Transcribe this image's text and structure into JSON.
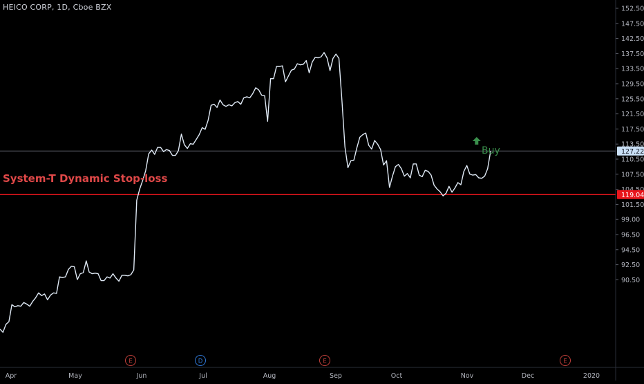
{
  "chart": {
    "title": "HEICO CORP, 1D, Cboe BZX",
    "stoploss_label": "System-T Dynamic Stop-loss",
    "buy_label": "Buy",
    "colors": {
      "background": "#000000",
      "price_line": "#dfe9f5",
      "stoploss_line": "#e8161c",
      "stoploss_label": "#e04848",
      "last_price_line": "#5d606b",
      "last_price_badge": "#c9dff5",
      "stoploss_badge": "#e8161c",
      "axis_text": "#b2b5be",
      "buy_marker": "#3a8f4c",
      "event_earnings": "#c2403b",
      "event_dividend": "#2f78d6"
    },
    "icons": {
      "buy_marker": "up-arrow-icon"
    }
  },
  "chart_data": {
    "type": "line",
    "title": "HEICO CORP, 1D, Cboe BZX",
    "y_axis": {
      "side": "right",
      "ylim": [
        88.7,
        154.0
      ],
      "tick_labels": [
        "152.50",
        "147.50",
        "142.50",
        "137.50",
        "133.50",
        "129.50",
        "125.50",
        "121.50",
        "117.50",
        "113.50",
        "110.50",
        "107.50",
        "104.50",
        "101.50",
        "99.00",
        "96.50",
        "94.50",
        "92.50",
        "90.50"
      ]
    },
    "x_axis": {
      "tick_labels": [
        "Apr",
        "May",
        "Jun",
        "Jul",
        "Aug",
        "Sep",
        "Oct",
        "Nov",
        "Dec",
        "2020"
      ]
    },
    "horizontal_lines": [
      {
        "name": "last-price",
        "value": 127.22,
        "label": "127.22"
      },
      {
        "name": "stop-loss",
        "value": 119.04,
        "label": "119.04"
      }
    ],
    "series": [
      {
        "values": [
          93.8,
          93.2,
          94.7,
          95.2,
          98.4,
          98.0,
          98.2,
          98.1,
          98.8,
          98.5,
          98.1,
          99.0,
          99.7,
          100.6,
          100.1,
          100.4,
          99.3,
          100.2,
          100.6,
          100.5,
          103.6,
          103.5,
          103.6,
          105.0,
          105.6,
          105.5,
          103.1,
          104.2,
          104.4,
          106.6,
          104.5,
          104.2,
          104.3,
          104.2,
          102.9,
          102.9,
          103.6,
          103.4,
          104.2,
          103.4,
          102.8,
          103.9,
          103.9,
          103.8,
          104.0,
          104.9,
          118.0,
          120.1,
          121.7,
          123.5,
          126.7,
          127.4,
          126.6,
          127.9,
          127.9,
          127.1,
          127.5,
          127.3,
          126.4,
          126.4,
          127.3,
          130.4,
          128.4,
          127.7,
          128.6,
          128.5,
          129.4,
          130.3,
          131.6,
          131.3,
          133.0,
          135.8,
          136.0,
          135.4,
          136.8,
          135.9,
          135.6,
          135.9,
          135.7,
          136.3,
          136.5,
          136.0,
          137.2,
          137.4,
          137.2,
          138.0,
          139.1,
          138.7,
          137.7,
          137.6,
          132.8,
          140.8,
          140.8,
          143.1,
          143.1,
          143.2,
          140.2,
          141.3,
          142.4,
          142.6,
          143.6,
          143.4,
          143.5,
          144.2,
          141.9,
          143.9,
          144.8,
          144.7,
          144.9,
          145.7,
          144.7,
          142.3,
          144.6,
          145.4,
          144.6,
          136.8,
          128.0,
          124.1,
          125.4,
          125.5,
          127.8,
          129.8,
          130.3,
          130.6,
          128.3,
          127.6,
          129.2,
          128.5,
          127.5,
          124.6,
          125.4,
          120.4,
          122.5,
          124.3,
          124.7,
          123.9,
          122.5,
          123.0,
          122.2,
          124.8,
          124.8,
          122.7,
          122.4,
          123.6,
          123.4,
          122.7,
          120.8,
          120.1,
          119.6,
          118.8,
          119.3,
          120.6,
          119.5,
          120.3,
          121.3,
          120.9,
          123.4,
          124.5,
          122.9,
          122.7,
          122.8,
          122.2,
          122.1,
          122.5,
          123.9,
          127.2
        ]
      }
    ],
    "annotations": [
      {
        "type": "buy-marker",
        "label": "Buy",
        "index": 161
      }
    ],
    "events": [
      {
        "label": "E",
        "kind": "earnings"
      },
      {
        "label": "D",
        "kind": "dividend"
      },
      {
        "label": "E",
        "kind": "earnings"
      },
      {
        "label": "E",
        "kind": "earnings"
      }
    ],
    "grid": false,
    "legend": "none"
  }
}
